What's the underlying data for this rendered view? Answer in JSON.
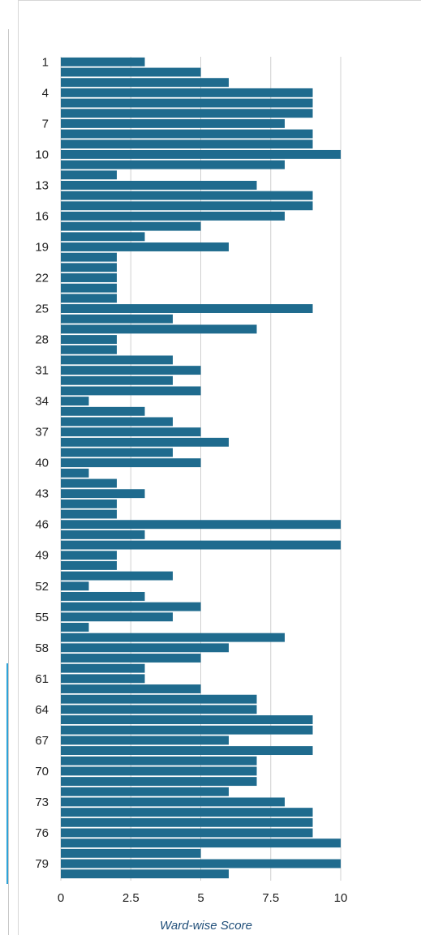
{
  "chart_data": {
    "type": "bar",
    "orientation": "horizontal",
    "title": "",
    "xlabel": "Ward-wise Score",
    "ylabel": "",
    "xlim": [
      0,
      10
    ],
    "x_ticks": [
      0,
      2.5,
      5,
      7.5,
      10
    ],
    "x_tick_labels": [
      "0",
      "2.5",
      "5",
      "7.5",
      "10"
    ],
    "grid": "vertical",
    "bar_color": "#1f6b8e",
    "categories": [
      "1",
      "2",
      "3",
      "4",
      "5",
      "6",
      "7",
      "8",
      "9",
      "10",
      "11",
      "12",
      "13",
      "14",
      "15",
      "16",
      "17",
      "18",
      "19",
      "20",
      "21",
      "22",
      "23",
      "24",
      "25",
      "26",
      "27",
      "28",
      "29",
      "30",
      "31",
      "32",
      "33",
      "34",
      "35",
      "36",
      "37",
      "38",
      "39",
      "40",
      "41",
      "42",
      "43",
      "44",
      "45",
      "46",
      "47",
      "48",
      "49",
      "50",
      "51",
      "52",
      "53",
      "54",
      "55",
      "56",
      "57",
      "58",
      "59",
      "60",
      "61",
      "62",
      "63",
      "64",
      "65",
      "66",
      "67",
      "68",
      "69",
      "70",
      "71",
      "72",
      "73",
      "74",
      "75",
      "76",
      "77",
      "78",
      "79",
      "80"
    ],
    "shown_category_labels": [
      "1",
      "4",
      "7",
      "10",
      "13",
      "16",
      "19",
      "22",
      "25",
      "28",
      "31",
      "34",
      "37",
      "40",
      "43",
      "46",
      "49",
      "52",
      "55",
      "58",
      "61",
      "64",
      "67",
      "70",
      "73",
      "76",
      "79"
    ],
    "values": [
      3,
      5,
      6,
      9,
      9,
      9,
      8,
      9,
      9,
      10,
      8,
      2,
      7,
      9,
      9,
      8,
      5,
      3,
      6,
      2,
      2,
      2,
      2,
      2,
      9,
      4,
      7,
      2,
      2,
      4,
      5,
      4,
      5,
      1,
      3,
      4,
      5,
      6,
      4,
      5,
      1,
      2,
      3,
      2,
      2,
      10,
      3,
      10,
      2,
      2,
      4,
      1,
      3,
      5,
      4,
      1,
      8,
      6,
      5,
      3,
      3,
      5,
      7,
      7,
      9,
      9,
      6,
      9,
      7,
      7,
      7,
      6,
      8,
      9,
      9,
      9,
      10,
      5,
      10,
      6
    ]
  }
}
